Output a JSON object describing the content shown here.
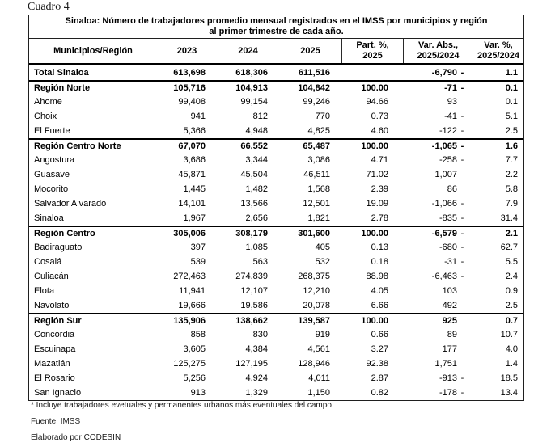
{
  "page": {
    "caption": "Cuadro 4"
  },
  "table": {
    "title_line1": "Sinaloa: Número de trabajadores promedio mensual registrados en el IMSS por municipios y región",
    "title_line2": "al primer trimestre de cada año.",
    "headers": {
      "municipios": "Municipios/Región",
      "y2023": "2023",
      "y2024": "2024",
      "y2025": "2025",
      "part_line1": "Part. %,",
      "part_line2": "2025",
      "varabs_line1": "Var. Abs.,",
      "varabs_line2": "2025/2024",
      "varpct_line1": "Var. %,",
      "varpct_line2": "2025/2024"
    },
    "rows": [
      {
        "name": "Total Sinaloa",
        "type": "total",
        "y2023": "613,698",
        "y2024": "618,306",
        "y2025": "611,516",
        "part": "",
        "var_abs": "-6,790",
        "neg": true,
        "var_pct": "1.1"
      },
      {
        "name": "Región Norte",
        "type": "region",
        "y2023": "105,716",
        "y2024": "104,913",
        "y2025": "104,842",
        "part": "100.00",
        "var_abs": "-71",
        "neg": true,
        "var_pct": "0.1"
      },
      {
        "name": "Ahome",
        "type": "muni",
        "y2023": "99,408",
        "y2024": "99,154",
        "y2025": "99,246",
        "part": "94.66",
        "var_abs": "93",
        "neg": false,
        "var_pct": "0.1"
      },
      {
        "name": "Choix",
        "type": "muni",
        "y2023": "941",
        "y2024": "812",
        "y2025": "770",
        "part": "0.73",
        "var_abs": "-41",
        "neg": true,
        "var_pct": "5.1"
      },
      {
        "name": "El Fuerte",
        "type": "muni",
        "y2023": "5,366",
        "y2024": "4,948",
        "y2025": "4,825",
        "part": "4.60",
        "var_abs": "-122",
        "neg": true,
        "var_pct": "2.5"
      },
      {
        "name": "Región Centro Norte",
        "type": "region",
        "y2023": "67,070",
        "y2024": "66,552",
        "y2025": "65,487",
        "part": "100.00",
        "var_abs": "-1,065",
        "neg": true,
        "var_pct": "1.6"
      },
      {
        "name": "Angostura",
        "type": "muni",
        "y2023": "3,686",
        "y2024": "3,344",
        "y2025": "3,086",
        "part": "4.71",
        "var_abs": "-258",
        "neg": true,
        "var_pct": "7.7"
      },
      {
        "name": "Guasave",
        "type": "muni",
        "y2023": "45,871",
        "y2024": "45,504",
        "y2025": "46,511",
        "part": "71.02",
        "var_abs": "1,007",
        "neg": false,
        "var_pct": "2.2"
      },
      {
        "name": "Mocorito",
        "type": "muni",
        "y2023": "1,445",
        "y2024": "1,482",
        "y2025": "1,568",
        "part": "2.39",
        "var_abs": "86",
        "neg": false,
        "var_pct": "5.8"
      },
      {
        "name": "Salvador Alvarado",
        "type": "muni",
        "y2023": "14,101",
        "y2024": "13,566",
        "y2025": "12,501",
        "part": "19.09",
        "var_abs": "-1,066",
        "neg": true,
        "var_pct": "7.9"
      },
      {
        "name": "Sinaloa",
        "type": "muni",
        "y2023": "1,967",
        "y2024": "2,656",
        "y2025": "1,821",
        "part": "2.78",
        "var_abs": "-835",
        "neg": true,
        "var_pct": "31.4"
      },
      {
        "name": "Región Centro",
        "type": "region",
        "y2023": "305,006",
        "y2024": "308,179",
        "y2025": "301,600",
        "part": "100.00",
        "var_abs": "-6,579",
        "neg": true,
        "var_pct": "2.1"
      },
      {
        "name": "Badiraguato",
        "type": "muni",
        "y2023": "397",
        "y2024": "1,085",
        "y2025": "405",
        "part": "0.13",
        "var_abs": "-680",
        "neg": true,
        "var_pct": "62.7"
      },
      {
        "name": "Cosalá",
        "type": "muni",
        "y2023": "539",
        "y2024": "563",
        "y2025": "532",
        "part": "0.18",
        "var_abs": "-31",
        "neg": true,
        "var_pct": "5.5"
      },
      {
        "name": "Culiacán",
        "type": "muni",
        "y2023": "272,463",
        "y2024": "274,839",
        "y2025": "268,375",
        "part": "88.98",
        "var_abs": "-6,463",
        "neg": true,
        "var_pct": "2.4"
      },
      {
        "name": "Elota",
        "type": "muni",
        "y2023": "11,941",
        "y2024": "12,107",
        "y2025": "12,210",
        "part": "4.05",
        "var_abs": "103",
        "neg": false,
        "var_pct": "0.9"
      },
      {
        "name": "Navolato",
        "type": "muni",
        "y2023": "19,666",
        "y2024": "19,586",
        "y2025": "20,078",
        "part": "6.66",
        "var_abs": "492",
        "neg": false,
        "var_pct": "2.5"
      },
      {
        "name": "Región Sur",
        "type": "region",
        "y2023": "135,906",
        "y2024": "138,662",
        "y2025": "139,587",
        "part": "100.00",
        "var_abs": "925",
        "neg": false,
        "var_pct": "0.7"
      },
      {
        "name": "Concordia",
        "type": "muni",
        "y2023": "858",
        "y2024": "830",
        "y2025": "919",
        "part": "0.66",
        "var_abs": "89",
        "neg": false,
        "var_pct": "10.7"
      },
      {
        "name": "Escuinapa",
        "type": "muni",
        "y2023": "3,605",
        "y2024": "4,384",
        "y2025": "4,561",
        "part": "3.27",
        "var_abs": "177",
        "neg": false,
        "var_pct": "4.0"
      },
      {
        "name": "Mazatlán",
        "type": "muni",
        "y2023": "125,275",
        "y2024": "127,195",
        "y2025": "128,946",
        "part": "92.38",
        "var_abs": "1,751",
        "neg": false,
        "var_pct": "1.4"
      },
      {
        "name": "El Rosario",
        "type": "muni",
        "y2023": "5,256",
        "y2024": "4,924",
        "y2025": "4,011",
        "part": "2.87",
        "var_abs": "-913",
        "neg": true,
        "var_pct": "18.5"
      },
      {
        "name": "San Ignacio",
        "type": "muni",
        "y2023": "913",
        "y2024": "1,329",
        "y2025": "1,150",
        "part": "0.82",
        "var_abs": "-178",
        "neg": true,
        "var_pct": "13.4"
      }
    ]
  },
  "footnotes": {
    "note": "* Incluye trabajadores evetuales y permanentes urbanos más eventuales del campo",
    "source": "Fuente: IMSS",
    "author": "Elaborado por CODESIN"
  }
}
